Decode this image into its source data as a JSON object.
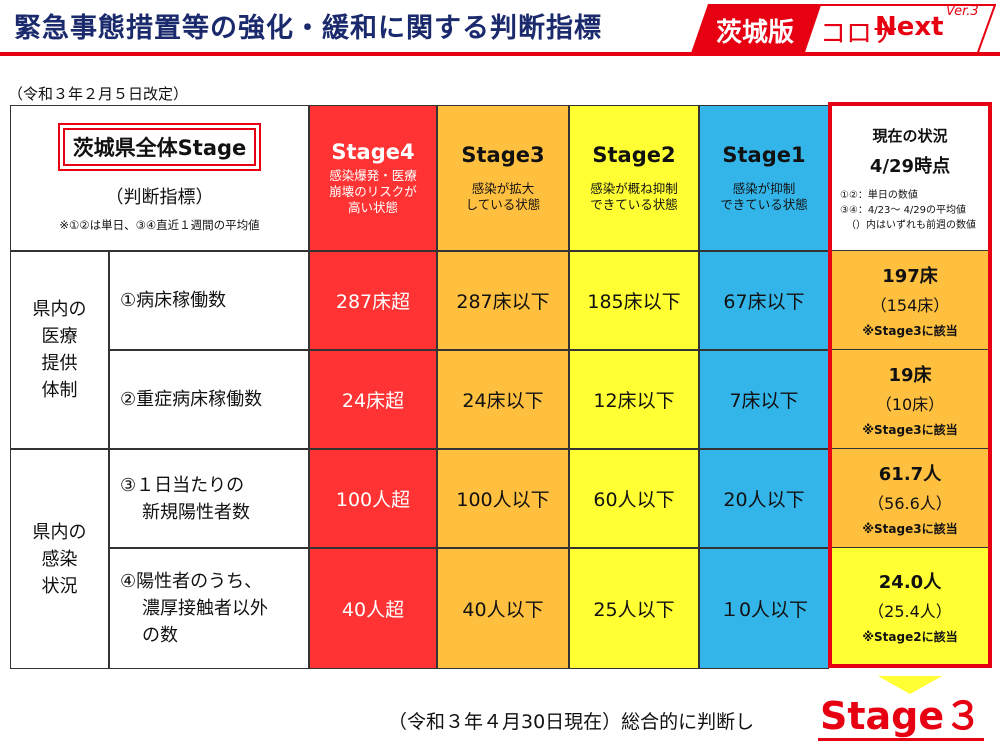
{
  "header": {
    "title": "緊急事態措置等の強化・緩和に関する判断指標",
    "badge_part1": "茨城版",
    "badge_part2": "コロナ",
    "badge_part3": "Next",
    "badge_version": "Ver.3"
  },
  "revision_note": "（令和３年２月５日改定）",
  "corner": {
    "title": "茨城県全体Stage",
    "subtitle": "（判断指標）",
    "note": "※①②は単日、③④直近１週間の平均値"
  },
  "stages": [
    {
      "name": "Stage4",
      "desc_line1": "感染爆発・医療",
      "desc_line2": "崩壊のリスクが",
      "desc_line3": "高い状態"
    },
    {
      "name": "Stage3",
      "desc_line1": "感染が拡大",
      "desc_line2": "している状態",
      "desc_line3": ""
    },
    {
      "name": "Stage2",
      "desc_line1": "感染が概ね抑制",
      "desc_line2": "できている状態",
      "desc_line3": ""
    },
    {
      "name": "Stage1",
      "desc_line1": "感染が抑制",
      "desc_line2": "できている状態",
      "desc_line3": ""
    }
  ],
  "current": {
    "heading": "現在の状況",
    "date": "4/29時点",
    "note1": "①②：単日の数値",
    "note2": "③④：4/23～ 4/29の平均値",
    "note3": "（）内はいずれも前週の数値"
  },
  "groups": [
    {
      "label_line1": "県内の",
      "label_line2": "医療",
      "label_line3": "提供",
      "label_line4": "体制"
    },
    {
      "label_line1": "県内の",
      "label_line2": "感染",
      "label_line3": "状況",
      "label_line4": ""
    }
  ],
  "indicators": [
    {
      "label_line1": "①病床稼働数",
      "label_line2": "",
      "label_line3": "",
      "s4": "287床超",
      "s3": "287床以下",
      "s2": "185床以下",
      "s1": "67床以下",
      "cur_value": "197床",
      "cur_prev": "（154床）",
      "cur_note": "※Stage3に該当",
      "cur_color": "#ffbf3f"
    },
    {
      "label_line1": "②重症病床稼働数",
      "label_line2": "",
      "label_line3": "",
      "s4": "24床超",
      "s3": "24床以下",
      "s2": "12床以下",
      "s1": "7床以下",
      "cur_value": "19床",
      "cur_prev": "（10床）",
      "cur_note": "※Stage3に該当",
      "cur_color": "#ffbf3f"
    },
    {
      "label_line1": "③１日当たりの",
      "label_line2": "新規陽性者数",
      "label_line3": "",
      "s4": "100人超",
      "s3": "100人以下",
      "s2": "60人以下",
      "s1": "20人以下",
      "cur_value": "61.7人",
      "cur_prev": "（56.6人）",
      "cur_note": "※Stage3に該当",
      "cur_color": "#ffbf3f"
    },
    {
      "label_line1": "④陽性者のうち、",
      "label_line2": "濃厚接触者以外",
      "label_line3": "の数",
      "s4": "40人超",
      "s3": "40人以下",
      "s2": "25人以下",
      "s1": "１0人以下",
      "cur_value": "24.0人",
      "cur_prev": "（25.4人）",
      "cur_note": "※Stage2に該当",
      "cur_color": "#ffff33"
    }
  ],
  "footer": {
    "overall_text": "（令和３年４月30日現在）総合的に判断し",
    "result": "Stage３"
  },
  "colors": {
    "stage4": "#ff3333",
    "stage3": "#ffbf3f",
    "stage2": "#ffff33",
    "stage1": "#33b5ea",
    "accent": "#e60012"
  }
}
